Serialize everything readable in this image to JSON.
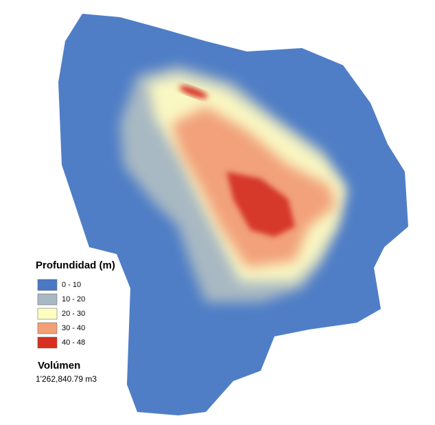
{
  "legend": {
    "title": "Profundidad (m)",
    "items": [
      {
        "label": "0 - 10",
        "color": "#4a79c3"
      },
      {
        "label": "10 - 20",
        "color": "#a9b9c3"
      },
      {
        "label": "20 - 30",
        "color": "#fdfdc4"
      },
      {
        "label": "30 - 40",
        "color": "#f4a076"
      },
      {
        "label": "40 - 48",
        "color": "#d7301f"
      }
    ]
  },
  "volume": {
    "title": "Volúmen",
    "value": "1'262,840.79 m3"
  }
}
